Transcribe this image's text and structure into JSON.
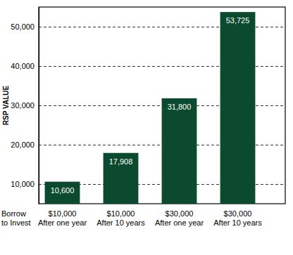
{
  "chart_data": {
    "type": "bar",
    "ylabel": "RSP VALUE",
    "xlabel": "Borrow\nto Invest",
    "categories": [
      "$10,000\nAfter one year",
      "$10,000\nAfter 10 years",
      "$30,000\nAfter one year",
      "$30,000\nAfter 10 years"
    ],
    "values": [
      10600,
      17908,
      31800,
      53725
    ],
    "value_labels": [
      "10,600",
      "17,908",
      "31,800",
      "53,725"
    ],
    "data_labels": true,
    "color": "#0b4a2f",
    "ylim": [
      5000,
      55000
    ],
    "yticks": [
      {
        "value": 10000,
        "label": "10,000"
      },
      {
        "value": 20000,
        "label": "20,000"
      },
      {
        "value": 30000,
        "label": "30,000"
      },
      {
        "value": 40000,
        "label": "40,000"
      },
      {
        "value": 50000,
        "label": "50,000"
      }
    ],
    "grid": true
  }
}
